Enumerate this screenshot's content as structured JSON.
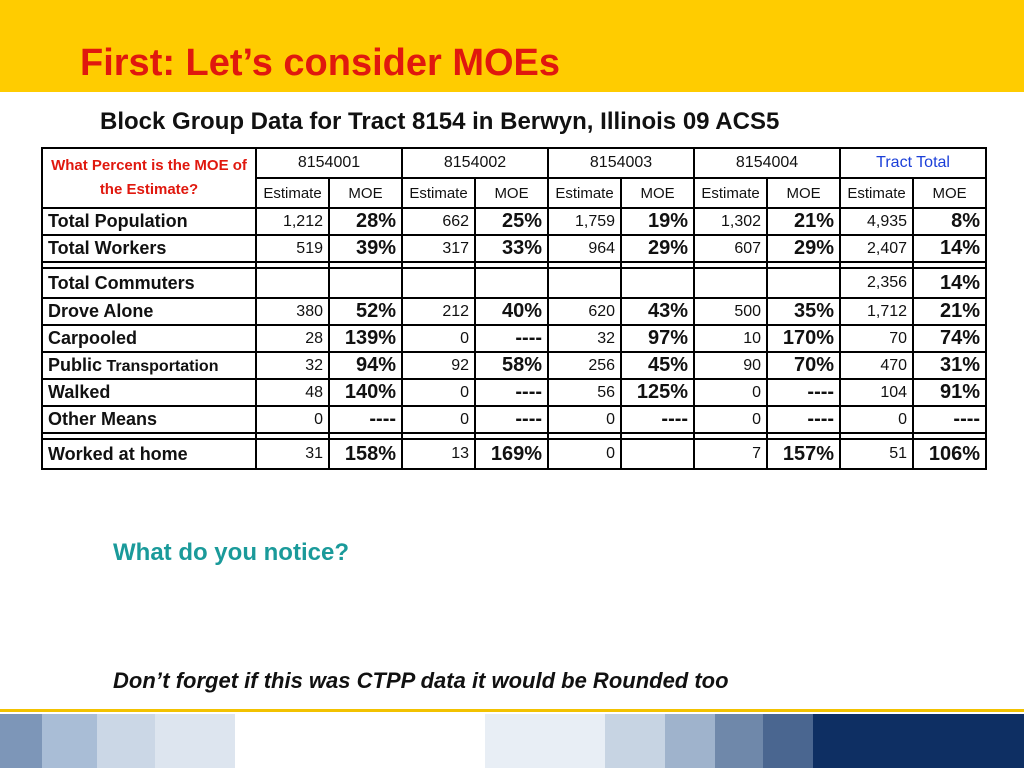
{
  "slide": {
    "title": "First:  Let’s consider MOEs",
    "table_title": "Block Group Data for Tract 8154 in Berwyn, Illinois 09 ACS5",
    "question_label": "What Percent is the MOE of the Estimate?",
    "notice": "What do you notice?",
    "footnote": "Don’t forget if this was CTPP data it would be Rounded too"
  },
  "table": {
    "groups": [
      "8154001",
      "8154002",
      "8154003",
      "8154004",
      "Tract Total"
    ],
    "sub_headers": [
      "Estimate",
      "MOE"
    ],
    "rows": [
      {
        "label": "Total Population",
        "suffix": "",
        "cells": [
          "1,212",
          "28%",
          "662",
          "25%",
          "1,759",
          "19%",
          "1,302",
          "21%",
          "4,935",
          "8%"
        ]
      },
      {
        "label": "Total Workers",
        "suffix": "",
        "cells": [
          "519",
          "39%",
          "317",
          "33%",
          "964",
          "29%",
          "607",
          "29%",
          "2,407",
          "14%"
        ]
      },
      {
        "label": "Total Commuters",
        "suffix": "",
        "cells": [
          "",
          "",
          "",
          "",
          "",
          "",
          "",
          "",
          "2,356",
          "14%"
        ]
      },
      {
        "label": "Drove Alone",
        "suffix": "",
        "cells": [
          "380",
          "52%",
          "212",
          "40%",
          "620",
          "43%",
          "500",
          "35%",
          "1,712",
          "21%"
        ]
      },
      {
        "label": "Carpooled",
        "suffix": "",
        "cells": [
          "28",
          "139%",
          "0",
          "----",
          "32",
          "97%",
          "10",
          "170%",
          "70",
          "74%"
        ]
      },
      {
        "label": "Public",
        "suffix": " Transportation",
        "cells": [
          "32",
          "94%",
          "92",
          "58%",
          "256",
          "45%",
          "90",
          "70%",
          "470",
          "31%"
        ]
      },
      {
        "label": "Walked",
        "suffix": "",
        "cells": [
          "48",
          "140%",
          "0",
          "----",
          "56",
          "125%",
          "0",
          "----",
          "104",
          "91%"
        ]
      },
      {
        "label": "Other Means",
        "suffix": "",
        "cells": [
          "0",
          "----",
          "0",
          "----",
          "0",
          "----",
          "0",
          "----",
          "0",
          "----"
        ]
      },
      {
        "label": "Worked at home",
        "suffix": "",
        "cells": [
          "31",
          "158%",
          "13",
          "169%",
          "0",
          "",
          "7",
          "157%",
          "51",
          "106%"
        ]
      }
    ]
  },
  "colors": {
    "header_band": "#ffcc00",
    "title": "#e0180e",
    "notice": "#1a9a9a",
    "table_border": "#2233cc",
    "tract_total": "#1b3fd8",
    "footer_blocks": [
      "#7d96b8",
      "#a9bdd6",
      "#cbd7e6",
      "#dde5ef",
      "#ffffff",
      "#e8eef5",
      "#c7d4e3",
      "#9fb3cc",
      "#6f88aa",
      "#4a6690",
      "#0e2f63"
    ]
  }
}
